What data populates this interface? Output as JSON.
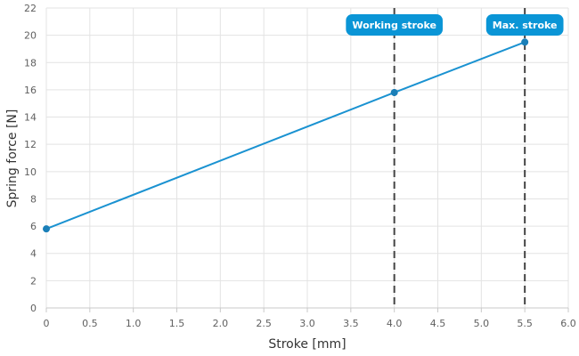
{
  "chart_data": {
    "type": "line",
    "xlabel": "Stroke [mm]",
    "ylabel": "Spring force [N]",
    "xlim": [
      0,
      6
    ],
    "ylim": [
      0,
      22
    ],
    "xticks": [
      "0",
      "0.5",
      "1.0",
      "1.5",
      "2.0",
      "2.5",
      "3.0",
      "3.5",
      "4.0",
      "4.5",
      "5.0",
      "5.5",
      "6.0"
    ],
    "yticks": [
      "0",
      "2",
      "4",
      "6",
      "8",
      "10",
      "12",
      "14",
      "16",
      "18",
      "20",
      "22"
    ],
    "grid": true,
    "series": [
      {
        "color": "#1a92d1",
        "points": [
          {
            "x": 0,
            "y": 5.8
          },
          {
            "x": 4.0,
            "y": 15.8
          },
          {
            "x": 5.5,
            "y": 19.5
          }
        ]
      }
    ],
    "markers": [
      {
        "x": 4.0,
        "label": "Working stroke"
      },
      {
        "x": 5.5,
        "label": "Max. stroke"
      }
    ],
    "colors": {
      "line": "#1a92d1",
      "point": "#1a7fb8",
      "marker_label_bg": "#0a95d6",
      "marker_line": "#444444",
      "grid": "#e3e3e3"
    }
  }
}
